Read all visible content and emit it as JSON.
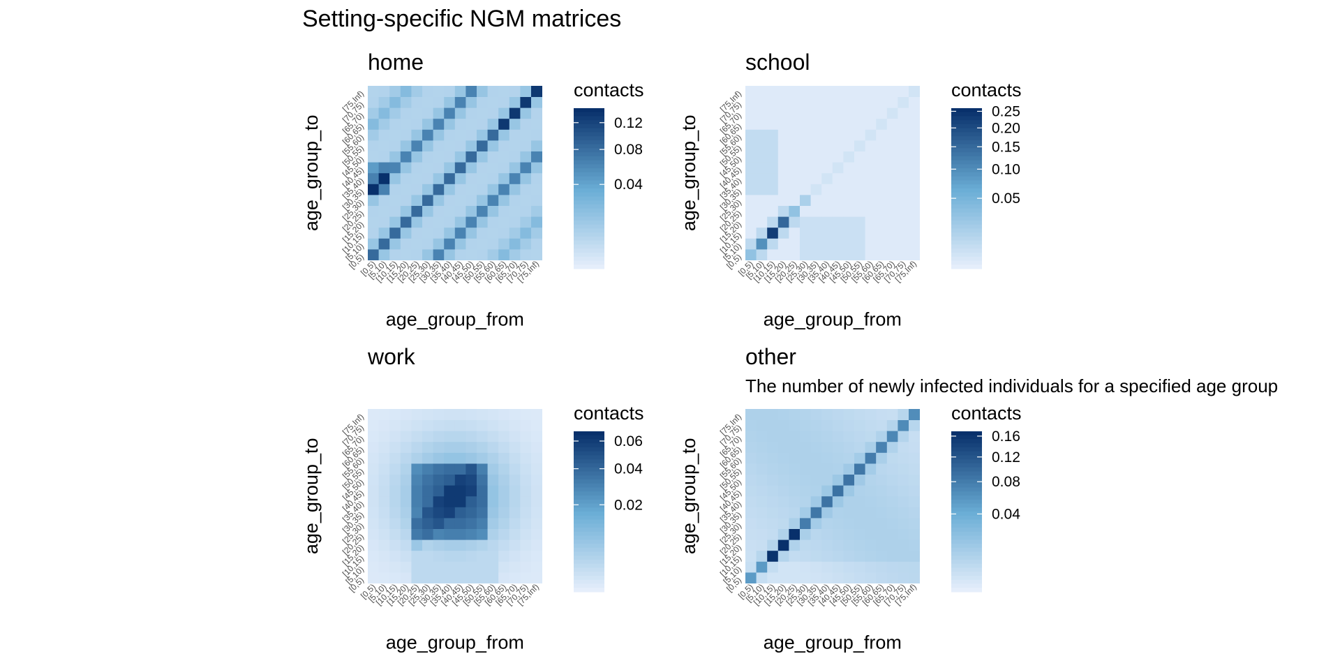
{
  "figure": {
    "title": "Setting-specific NGM matrices"
  },
  "chart_data": [
    {
      "type": "heatmap",
      "panel": "home",
      "title": "home",
      "subtitle": "",
      "xlabel": "age_group_from",
      "ylabel": "age_group_to",
      "categories": [
        "[0,5)",
        "[5,10)",
        "[10,15)",
        "[15,20)",
        "[20,25)",
        "[25,30)",
        "[30,35)",
        "[35,40)",
        "[40,45)",
        "[45,50)",
        "[50,55)",
        "[55,60)",
        "[60,65)",
        "[65,70)",
        "[70,75)",
        "[75,Inf)"
      ],
      "legend": {
        "title": "contacts",
        "ticks": [
          0.04,
          0.08,
          0.12
        ],
        "max": 0.145
      },
      "pattern": "home",
      "max": 0.145
    },
    {
      "type": "heatmap",
      "panel": "school",
      "title": "school",
      "subtitle": "",
      "xlabel": "age_group_from",
      "ylabel": "age_group_to",
      "categories": [
        "[0,5)",
        "[5,10)",
        "[10,15)",
        "[15,20)",
        "[20,25)",
        "[25,30)",
        "[30,35)",
        "[35,40)",
        "[40,45)",
        "[45,50)",
        "[50,55)",
        "[55,60)",
        "[60,65)",
        "[65,70)",
        "[70,75)",
        "[75,Inf)"
      ],
      "legend": {
        "title": "contacts",
        "ticks": [
          0.05,
          0.1,
          0.15,
          0.2,
          0.25
        ],
        "max": 0.26
      },
      "pattern": "school",
      "max": 0.26
    },
    {
      "type": "heatmap",
      "panel": "work",
      "title": "work",
      "subtitle": "",
      "xlabel": "age_group_from",
      "ylabel": "age_group_to",
      "categories": [
        "[0,5)",
        "[5,10)",
        "[10,15)",
        "[15,20)",
        "[20,25)",
        "[25,30)",
        "[30,35)",
        "[35,40)",
        "[40,45)",
        "[45,50)",
        "[50,55)",
        "[55,60)",
        "[60,65)",
        "[65,70)",
        "[70,75)",
        "[75,Inf)"
      ],
      "legend": {
        "title": "contacts",
        "ticks": [
          0.02,
          0.04,
          0.06
        ],
        "max": 0.068
      },
      "pattern": "work",
      "max": 0.068
    },
    {
      "type": "heatmap",
      "panel": "other",
      "title": "other",
      "subtitle": "The number of newly infected individuals for a specified age group",
      "xlabel": "age_group_from",
      "ylabel": "age_group_to",
      "categories": [
        "[0,5)",
        "[5,10)",
        "[10,15)",
        "[15,20)",
        "[20,25)",
        "[25,30)",
        "[30,35)",
        "[35,40)",
        "[40,45)",
        "[45,50)",
        "[50,55)",
        "[55,60)",
        "[60,65)",
        "[65,70)",
        "[70,75)",
        "[75,Inf)"
      ],
      "legend": {
        "title": "contacts",
        "ticks": [
          0.04,
          0.08,
          0.12,
          0.16
        ],
        "max": 0.17
      },
      "pattern": "other",
      "max": 0.17
    }
  ],
  "colors": {
    "low": "#ebf1fd",
    "mid": "#6baed6",
    "high": "#08306b"
  }
}
